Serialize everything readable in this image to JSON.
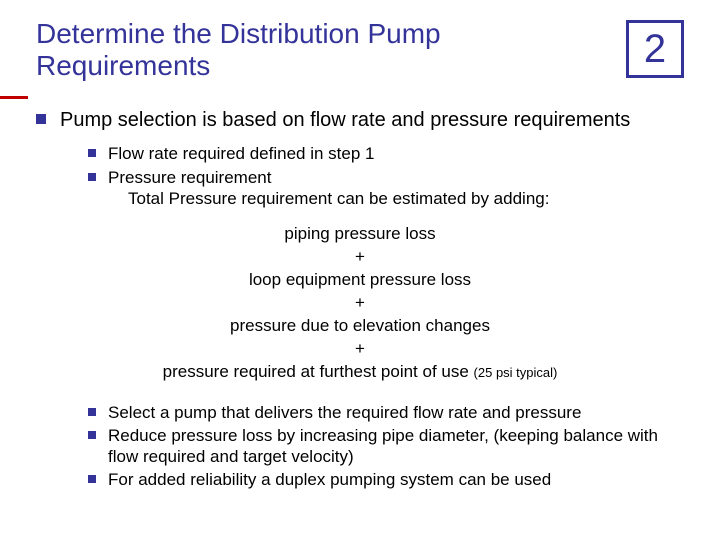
{
  "colors": {
    "title": "#333399",
    "box_border": "#333399",
    "red_accent": "#c00000",
    "body_text": "#000000",
    "background": "#ffffff",
    "bullet": "#333399"
  },
  "typography": {
    "title_fontsize": 28,
    "number_fontsize": 40,
    "lvl1_fontsize": 20,
    "lvl2_fontsize": 17,
    "note_fontsize": 13,
    "font_family": "Arial"
  },
  "header": {
    "title": "Determine the Distribution Pump Requirements",
    "step_number": "2"
  },
  "main_bullet": "Pump selection is based on flow rate and pressure requirements",
  "sub_bullets_a": [
    "Flow rate required defined in step 1",
    "Pressure requirement"
  ],
  "sub_bullet_a_indent": "Total Pressure requirement can be estimated by adding:",
  "center_lines": {
    "l1": "piping pressure loss",
    "plus": "+",
    "l2": "loop equipment pressure loss",
    "l3": "pressure due to elevation changes",
    "l4": "pressure required at furthest point of use ",
    "l4_note": "(25 psi typical)"
  },
  "sub_bullets_b": [
    "Select a pump that delivers the required flow rate and pressure",
    "Reduce pressure loss by increasing pipe diameter, (keeping balance with flow required and target velocity)",
    "For added reliability a duplex pumping system can be used"
  ]
}
